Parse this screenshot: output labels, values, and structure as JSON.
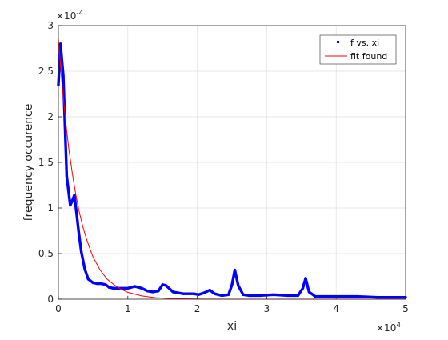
{
  "chart_data": {
    "type": "scatter",
    "xlabel": "xi",
    "ylabel": "frequency occurence",
    "xlim": [
      0,
      50000
    ],
    "ylim": [
      0,
      0.0003
    ],
    "x_ticks": [
      0,
      10000,
      20000,
      30000,
      40000,
      50000
    ],
    "x_tick_labels": [
      "0",
      "1",
      "2",
      "3",
      "4",
      "5"
    ],
    "y_ticks": [
      0,
      5e-05,
      0.0001,
      0.00015,
      0.0002,
      0.00025,
      0.0003
    ],
    "y_tick_labels": [
      "0",
      "0.5",
      "1",
      "1.5",
      "2",
      "2.5",
      "3"
    ],
    "x_exponent_label": "×10",
    "x_exponent": "4",
    "y_exponent_label": "×10",
    "y_exponent": "-4",
    "grid": true,
    "legend_position": "top-right",
    "series": [
      {
        "name": "f vs. xi",
        "style": "dots",
        "color": "#0000ff",
        "x": [
          0,
          300,
          700,
          1200,
          1700,
          2000,
          2300,
          2600,
          2900,
          3300,
          3800,
          4300,
          5000,
          5600,
          6200,
          6800,
          7300,
          7900,
          8400,
          9000,
          10000,
          11000,
          12000,
          12800,
          13600,
          14400,
          15000,
          15500,
          16500,
          18000,
          19500,
          20200,
          21000,
          21800,
          22500,
          23500,
          24500,
          25000,
          25400,
          25900,
          26600,
          27500,
          29000,
          31000,
          33000,
          34500,
          35200,
          35600,
          36100,
          37000,
          40000,
          43000,
          46000,
          50000
        ],
        "y": [
          0.000235,
          0.00028,
          0.000245,
          0.000135,
          0.000103,
          0.000108,
          0.000114,
          9.5e-05,
          7.5e-05,
          5.2e-05,
          3.3e-05,
          2.2e-05,
          1.8e-05,
          1.7e-05,
          1.7e-05,
          1.6e-05,
          1.3e-05,
          1.2e-05,
          1.2e-05,
          1.2e-05,
          1.2e-05,
          1.4e-05,
          1.2e-05,
          9e-06,
          8e-06,
          9e-06,
          1.6e-05,
          1.5e-05,
          8e-06,
          6e-06,
          6e-06,
          5e-06,
          7e-06,
          1e-05,
          6e-06,
          4e-06,
          5e-06,
          1.6e-05,
          3.2e-05,
          1.5e-05,
          5e-06,
          4e-06,
          4e-06,
          5e-06,
          4e-06,
          4e-06,
          1.2e-05,
          2.3e-05,
          8e-06,
          3e-06,
          3e-06,
          3e-06,
          2e-06,
          2e-06
        ]
      },
      {
        "name": "fit found",
        "style": "line",
        "color": "#ff0000",
        "x": [
          0,
          500,
          1000,
          1500,
          2000,
          2500,
          3000,
          3500,
          4000,
          4500,
          5000,
          6000,
          7000,
          8000,
          9000,
          10000,
          12000,
          14000,
          16000,
          18000,
          20000,
          25000,
          30000,
          35000,
          40000,
          45000,
          50000
        ],
        "y": [
          0.000285,
          0.000238,
          0.000198,
          0.000165,
          0.000138,
          0.000115,
          9.6e-05,
          8e-05,
          6.7e-05,
          5.6e-05,
          4.6e-05,
          3.2e-05,
          2.2e-05,
          1.6e-05,
          1.1e-05,
          7.5e-06,
          3.6e-06,
          1.7e-06,
          8e-07,
          4e-07,
          2e-07,
          0,
          0,
          0,
          0,
          0,
          0
        ]
      }
    ]
  }
}
